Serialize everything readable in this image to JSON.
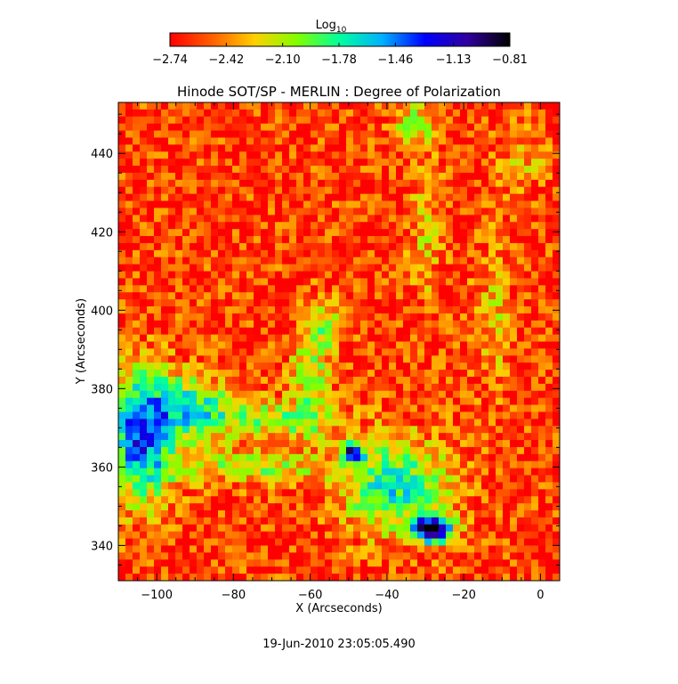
{
  "chart_data": {
    "type": "heatmap",
    "title": "Hinode SOT/SP - MERLIN : Degree of Polarization",
    "xlabel": "X (Arcseconds)",
    "ylabel": "Y (Arcseconds)",
    "xlim": [
      -110,
      5
    ],
    "ylim": [
      331,
      453
    ],
    "x_ticks": [
      -100,
      -80,
      -60,
      -40,
      -20,
      0
    ],
    "y_ticks": [
      340,
      360,
      380,
      400,
      420,
      440
    ],
    "x_tick_labels": [
      "−100",
      "−80",
      "−60",
      "−40",
      "−20",
      "0"
    ],
    "y_tick_labels": [
      "340",
      "360",
      "380",
      "400",
      "420",
      "440"
    ],
    "colorbar": {
      "label_base": "Log",
      "label_sub": "10",
      "min": -2.74,
      "max": -0.81,
      "tick_values": [
        -2.74,
        -2.42,
        -2.1,
        -1.78,
        -1.46,
        -1.13,
        -0.81
      ],
      "tick_labels": [
        "−2.74",
        "−2.42",
        "−2.10",
        "−1.78",
        "−1.46",
        "−1.13",
        "−0.81"
      ],
      "colormap": [
        "#ff0000",
        "#ff6000",
        "#ffd000",
        "#80ff00",
        "#00ffa0",
        "#00b0ff",
        "#0000ff",
        "#3000a0",
        "#000000"
      ]
    },
    "features": [
      {
        "name": "network-lane-left",
        "x": -102,
        "y": 370,
        "level": -1.5
      },
      {
        "name": "strong-patch-upper",
        "x": -49,
        "y": 364,
        "level": -1.2
      },
      {
        "name": "strong-patch-lower",
        "x": -28,
        "y": 344,
        "level": -0.85
      }
    ],
    "background_level": -2.6
  },
  "timestamp": "19-Jun-2010 23:05:05.490"
}
